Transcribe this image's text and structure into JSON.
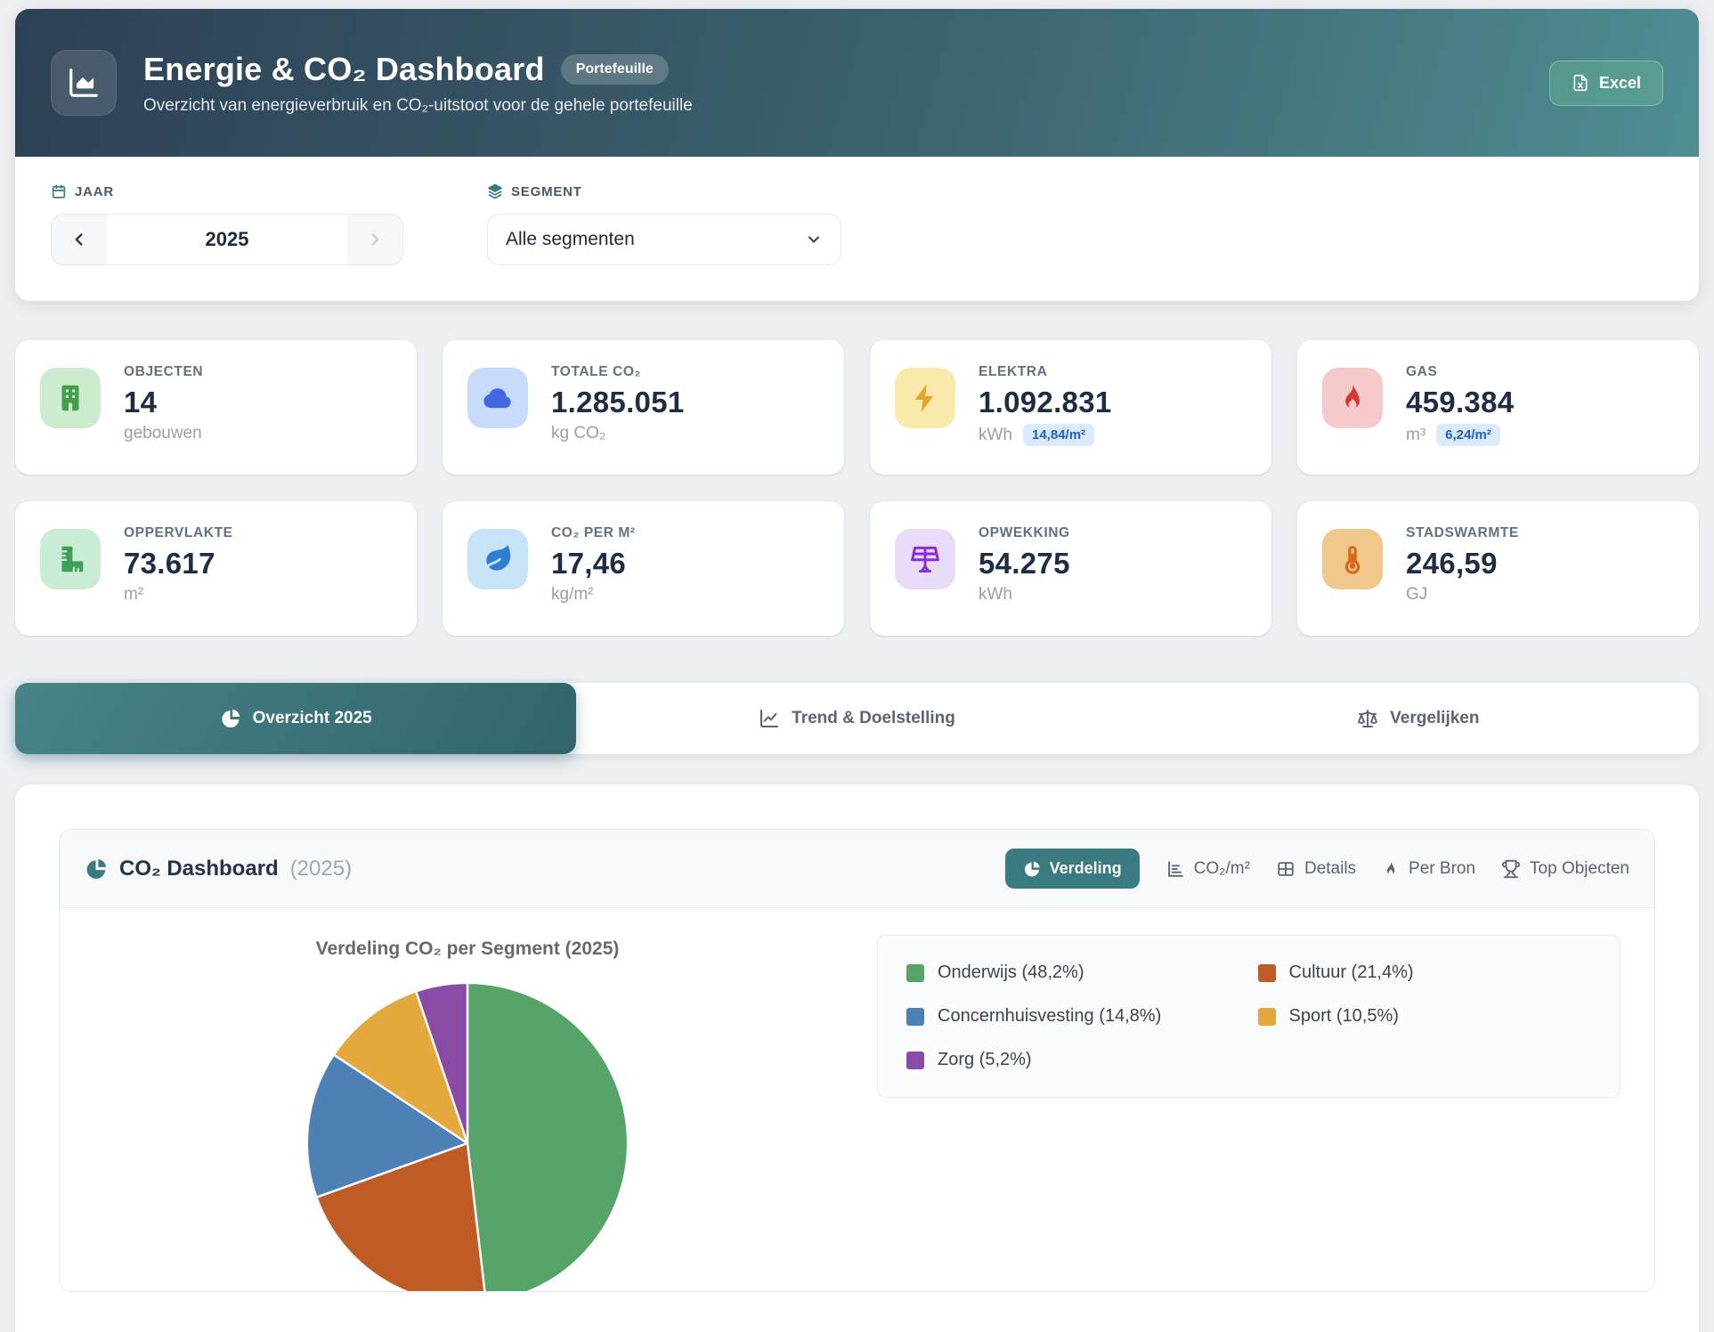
{
  "header": {
    "title": "Energie & CO₂ Dashboard",
    "badge": "Portefeuille",
    "subtitle": "Overzicht van energieverbruik en CO₂-uitstoot voor de gehele portefeuille",
    "excel_button": "Excel",
    "icon": "chart-area-icon",
    "gradient_start": "#2d4055",
    "gradient_end": "#4f8d93"
  },
  "filters": {
    "year": {
      "label": "JAAR",
      "value": "2025",
      "icon": "calendar-icon"
    },
    "segment": {
      "label": "SEGMENT",
      "value": "Alle segmenten",
      "icon": "layers-icon"
    }
  },
  "kpis": [
    {
      "label": "OBJECTEN",
      "value": "14",
      "unit": "gebouwen",
      "icon": "building-icon",
      "accent": "#43a047",
      "tint": "#cbeccf"
    },
    {
      "label": "TOTALE CO₂",
      "value": "1.285.051",
      "unit": "kg CO₂",
      "icon": "cloud-icon",
      "accent": "#4268e0",
      "tint": "#c9dbfa"
    },
    {
      "label": "ELEKTRA",
      "value": "1.092.831",
      "unit": "kWh",
      "badge": "14,84/m²",
      "icon": "bolt-icon",
      "accent": "#e8a42a",
      "tint": "#f9e9ab"
    },
    {
      "label": "GAS",
      "value": "459.384",
      "unit": "m³",
      "badge": "6,24/m²",
      "icon": "flame-icon",
      "accent": "#d7372c",
      "tint": "#f6caca"
    },
    {
      "label": "OPPERVLAKTE",
      "value": "73.617",
      "unit": "m²",
      "icon": "ruler-icon",
      "accent": "#3d9e57",
      "tint": "#c9ecd4"
    },
    {
      "label": "CO₂ PER M²",
      "value": "17,46",
      "unit": "kg/m²",
      "icon": "leaf-icon",
      "accent": "#2f7fd1",
      "tint": "#c7e4f9"
    },
    {
      "label": "OPWEKKING",
      "value": "54.275",
      "unit": "kWh",
      "icon": "solar-panel-icon",
      "accent": "#8a2fd6",
      "tint": "#e9dcfa"
    },
    {
      "label": "STADSWARMTE",
      "value": "246,59",
      "unit": "GJ",
      "icon": "thermometer-icon",
      "accent": "#d8671c",
      "tint": "#f0c88b"
    }
  ],
  "tabs": [
    {
      "label": "Overzicht 2025",
      "icon": "pie-chart-icon",
      "active": true
    },
    {
      "label": "Trend & Doelstelling",
      "icon": "line-chart-icon",
      "active": false
    },
    {
      "label": "Vergelijken",
      "icon": "scale-icon",
      "active": false
    }
  ],
  "panel": {
    "title": "CO₂ Dashboard",
    "year": "(2025)",
    "icon": "pie-chart-icon",
    "subtabs": [
      {
        "label": "Verdeling",
        "icon": "pie-chart-icon",
        "active": true
      },
      {
        "label": "CO₂/m²",
        "icon": "bar-chart-icon",
        "active": false
      },
      {
        "label": "Details",
        "icon": "table-icon",
        "active": false
      },
      {
        "label": "Per Bron",
        "icon": "flame-icon",
        "active": false
      },
      {
        "label": "Top Objecten",
        "icon": "trophy-icon",
        "active": false
      }
    ]
  },
  "chart_data": {
    "type": "pie",
    "title": "Verdeling CO₂ per Segment (2025)",
    "categories": [
      "Onderwijs",
      "Cultuur",
      "Concernhuisvesting",
      "Sport",
      "Zorg"
    ],
    "values": [
      48.2,
      21.4,
      14.8,
      10.5,
      5.2
    ],
    "unit": "%",
    "colors": [
      "#57a468",
      "#bf5b25",
      "#4d80b5",
      "#e3a93c",
      "#8a4ba6"
    ],
    "legend_labels": [
      "Onderwijs (48,2%)",
      "Cultuur (21,4%)",
      "Concernhuisvesting (14,8%)",
      "Sport (10,5%)",
      "Zorg (5,2%)"
    ],
    "legend_position": "right",
    "start_angle_deg": 0,
    "direction": "clockwise"
  },
  "accents": {
    "teal": "#3a7a81",
    "excel_green": "#78cd96"
  }
}
